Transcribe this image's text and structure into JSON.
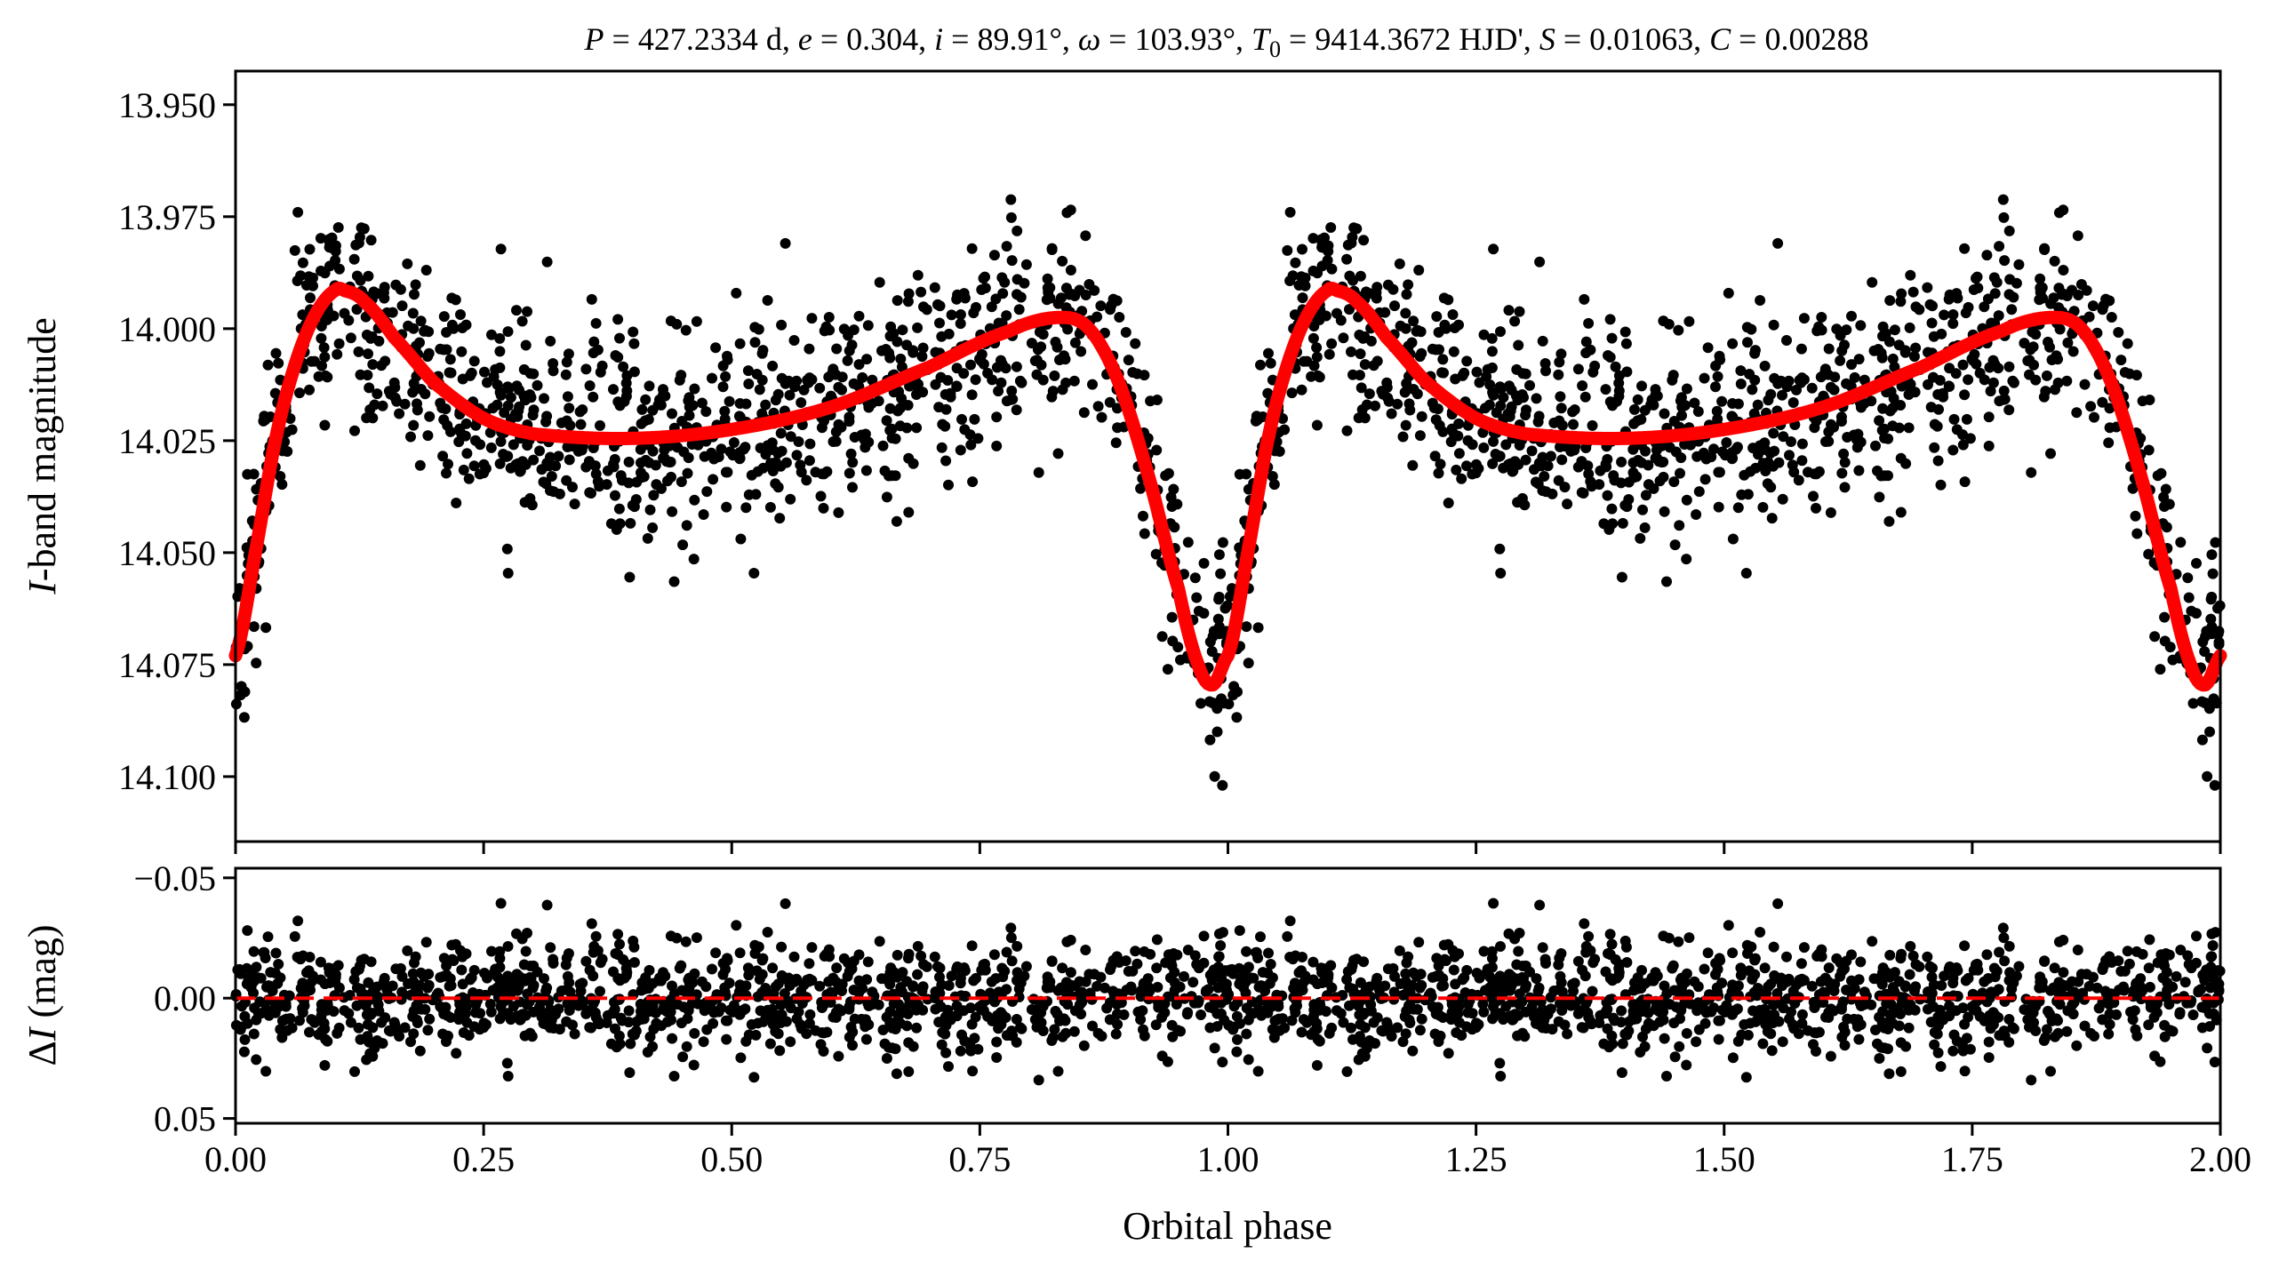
{
  "chart_data": [
    {
      "type": "scatter",
      "panel": "light-curve",
      "title": "P = 427.2334 d, e = 0.304, i = 89.91°, ω = 103.93°, T0 = 9414.3672 HJD', S = 0.01063, C = 0.00288",
      "title_parts": {
        "p_sym": "P",
        "p_val": " = 427.2334 d, ",
        "e_sym": "e",
        "e_val": " = 0.304, ",
        "i_sym": "i",
        "i_val": " = 89.91°, ",
        "w_sym": "ω",
        "w_val": " = 103.93°, ",
        "t_sym": "T",
        "t_sub": "0",
        "t_val": " = 9414.3672 HJD', ",
        "s_sym": "S",
        "s_val": " = 0.01063, ",
        "c_sym": "C",
        "c_val": " = 0.00288"
      },
      "ylabel": "I-band magnitude",
      "ylabel_parts": {
        "sym": "I",
        "rest": "-band magnitude"
      },
      "xlim": [
        0.0,
        2.0
      ],
      "ylim": [
        14.1145,
        13.9425
      ],
      "y_inverted": true,
      "yticks": [
        13.95,
        13.975,
        14.0,
        14.025,
        14.05,
        14.075,
        14.1
      ],
      "ytick_labels": [
        "13.950",
        "13.975",
        "14.000",
        "14.025",
        "14.050",
        "14.075",
        "14.100"
      ],
      "grid": false,
      "series": [
        {
          "kind": "observations",
          "marker_color": "#000000",
          "phase_folded_period": 1.0,
          "n_points_per_cycle": 1100,
          "noise_sigma_mag": 0.012
        },
        {
          "kind": "model",
          "line_color": "#ff0000",
          "phase_folded_period": 1.0,
          "x": [
            0.0,
            0.02,
            0.04,
            0.06,
            0.08,
            0.1,
            0.11,
            0.13,
            0.16,
            0.2,
            0.25,
            0.3,
            0.4,
            0.5,
            0.6,
            0.7,
            0.78,
            0.83,
            0.86,
            0.89,
            0.92,
            0.95,
            0.97,
            0.985,
            1.0
          ],
          "y": [
            14.073,
            14.05,
            14.025,
            14.008,
            13.997,
            13.9915,
            13.9915,
            13.994,
            14.002,
            14.012,
            14.02,
            14.0235,
            14.0245,
            14.0225,
            14.0175,
            14.0085,
            14.0005,
            13.9975,
            14.0,
            14.012,
            14.033,
            14.058,
            14.075,
            14.0795,
            14.073
          ]
        }
      ]
    },
    {
      "type": "scatter",
      "panel": "residuals",
      "xlabel": "Orbital phase",
      "ylabel": "ΔI (mag)",
      "ylabel_parts": {
        "delta": "Δ",
        "sym": "I",
        "rest": " (mag)"
      },
      "xlim": [
        0.0,
        2.0
      ],
      "ylim": [
        0.052,
        -0.054
      ],
      "y_inverted": true,
      "yticks": [
        -0.05,
        0.0,
        0.05
      ],
      "ytick_labels": [
        "−0.05",
        "0.00",
        "0.05"
      ],
      "xticks": [
        0.0,
        0.25,
        0.5,
        0.75,
        1.0,
        1.25,
        1.5,
        1.75,
        2.0
      ],
      "xtick_labels": [
        "0.00",
        "0.25",
        "0.50",
        "0.75",
        "1.00",
        "1.25",
        "1.50",
        "1.75",
        "2.00"
      ],
      "zero_line": {
        "value": 0.0,
        "color": "#ff0000",
        "style": "dashed"
      },
      "grid": false,
      "series": [
        {
          "kind": "residuals",
          "marker_color": "#000000",
          "noise_sigma_mag": 0.012
        }
      ]
    }
  ]
}
